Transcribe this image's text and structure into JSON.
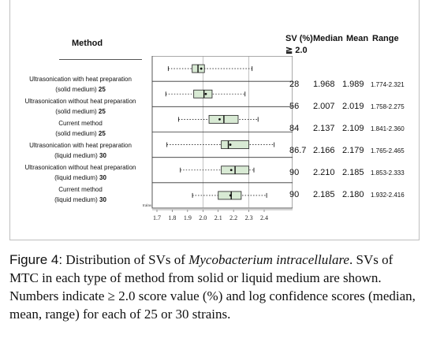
{
  "header": {
    "method": "Method",
    "sv_line1": "SV (%)",
    "sv_line2": "≧ 2.0",
    "median": "Median",
    "mean": "Mean",
    "range": "Range"
  },
  "rows": [
    {
      "line1": "Ultrasonication with heat preparation",
      "line2": "(solid medium)",
      "n": "25",
      "sv": "28",
      "median": "1.968",
      "mean": "1.989",
      "range": "1.774-2.321",
      "q1": 1.93,
      "q3": 2.01
    },
    {
      "line1": "Ultrasonication without heat preparation",
      "line2": "(solid medium)",
      "n": "25",
      "sv": "56",
      "median": "2.007",
      "mean": "2.019",
      "range": "1.758-2.275",
      "q1": 1.94,
      "q3": 2.06
    },
    {
      "line1": "Current method",
      "line2": "(solid medium)",
      "n": "25",
      "sv": "84",
      "median": "2.137",
      "mean": "2.109",
      "range": "1.841-2.360",
      "q1": 2.04,
      "q3": 2.23
    },
    {
      "line1": "Ultrasonication with heat preparation",
      "line2": "(liquid medium)",
      "n": "30",
      "sv": "86.7",
      "median": "2.166",
      "mean": "2.179",
      "range": "1.765-2.465",
      "q1": 2.12,
      "q3": 2.3
    },
    {
      "line1": "Ultrasonication without heat preparation",
      "line2": "(liquid medium)",
      "n": "30",
      "sv": "90",
      "median": "2.210",
      "mean": "2.185",
      "range": "1.853-2.333",
      "q1": 2.12,
      "q3": 2.3
    },
    {
      "line1": "Current method",
      "line2": "(liquid medium)",
      "n": "30",
      "sv": "90",
      "median": "2.185",
      "mean": "2.180",
      "range": "1.932-2.416",
      "q1": 2.1,
      "q3": 2.25
    }
  ],
  "axis": {
    "strains_label": "strains",
    "ticks": [
      "1.7",
      "1.8",
      "1.9",
      "2.0",
      "2.1",
      "2.2",
      "2.3",
      "2.4"
    ],
    "xlim": [
      1.7,
      2.4
    ],
    "gridlines": [
      2.0,
      2.3
    ]
  },
  "caption": {
    "label": "Figure 4:",
    "part1": " Distribution of SVs of ",
    "organism": "Mycobacterium intracellulare",
    "part2": ". SVs of MTC in each type of method from solid or liquid medium are shown. Numbers indicate ≥ 2.0 score value (%) and log confidence scores (median, mean, range) for each of 25 or 30 strains."
  },
  "colors": {
    "box_fill": "#d8ead4",
    "box_stroke": "#333333"
  }
}
